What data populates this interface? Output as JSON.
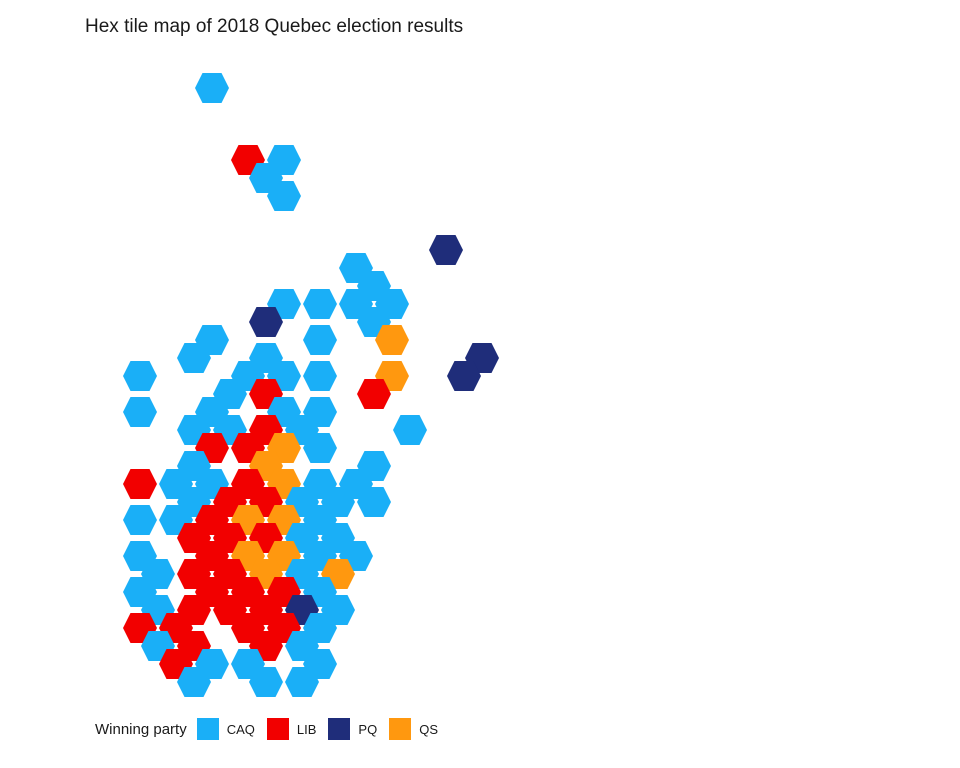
{
  "title": "Hex tile map of 2018 Quebec election results",
  "legend": {
    "title": "Winning party",
    "items": [
      {
        "key": "CAQ",
        "label": "CAQ",
        "color": "#1AAFF7"
      },
      {
        "key": "LIB",
        "label": "LIB",
        "color": "#F20000"
      },
      {
        "key": "PQ",
        "label": "PQ",
        "color": "#1F2D7A"
      },
      {
        "key": "QS",
        "label": "QS",
        "color": "#FF980F"
      }
    ]
  },
  "chart_data": {
    "type": "hex-tile-map",
    "title": "Hex tile map of 2018 Quebec election results",
    "legend_placement": "bottom-left",
    "ridings": [
      {
        "col": 8,
        "row": 0,
        "party": "CAQ"
      },
      {
        "col": 10,
        "row": 4,
        "party": "LIB"
      },
      {
        "col": 11,
        "row": 5,
        "party": "CAQ"
      },
      {
        "col": 12,
        "row": 4,
        "party": "CAQ"
      },
      {
        "col": 12,
        "row": 6,
        "party": "CAQ"
      },
      {
        "col": 21,
        "row": 9,
        "party": "PQ"
      },
      {
        "col": 16,
        "row": 10,
        "party": "CAQ"
      },
      {
        "col": 17,
        "row": 11,
        "party": "CAQ"
      },
      {
        "col": 16,
        "row": 12,
        "party": "CAQ"
      },
      {
        "col": 18,
        "row": 12,
        "party": "CAQ"
      },
      {
        "col": 17,
        "row": 13,
        "party": "CAQ"
      },
      {
        "col": 18,
        "row": 14,
        "party": "QS"
      },
      {
        "col": 18,
        "row": 16,
        "party": "QS"
      },
      {
        "col": 17,
        "row": 17,
        "party": "LIB"
      },
      {
        "col": 23,
        "row": 15,
        "party": "PQ"
      },
      {
        "col": 22,
        "row": 16,
        "party": "PQ"
      },
      {
        "col": 19,
        "row": 19,
        "party": "CAQ"
      },
      {
        "col": 12,
        "row": 12,
        "party": "CAQ"
      },
      {
        "col": 11,
        "row": 13,
        "party": "PQ"
      },
      {
        "col": 14,
        "row": 12,
        "party": "CAQ"
      },
      {
        "col": 14,
        "row": 14,
        "party": "CAQ"
      },
      {
        "col": 8,
        "row": 14,
        "party": "CAQ"
      },
      {
        "col": 7,
        "row": 15,
        "party": "CAQ"
      },
      {
        "col": 4,
        "row": 16,
        "party": "CAQ"
      },
      {
        "col": 4,
        "row": 18,
        "party": "CAQ"
      },
      {
        "col": 11,
        "row": 15,
        "party": "CAQ"
      },
      {
        "col": 10,
        "row": 16,
        "party": "CAQ"
      },
      {
        "col": 12,
        "row": 16,
        "party": "CAQ"
      },
      {
        "col": 14,
        "row": 16,
        "party": "CAQ"
      },
      {
        "col": 9,
        "row": 17,
        "party": "CAQ"
      },
      {
        "col": 11,
        "row": 17,
        "party": "LIB"
      },
      {
        "col": 8,
        "row": 18,
        "party": "CAQ"
      },
      {
        "col": 12,
        "row": 18,
        "party": "CAQ"
      },
      {
        "col": 14,
        "row": 18,
        "party": "CAQ"
      },
      {
        "col": 7,
        "row": 19,
        "party": "CAQ"
      },
      {
        "col": 9,
        "row": 19,
        "party": "CAQ"
      },
      {
        "col": 11,
        "row": 19,
        "party": "LIB"
      },
      {
        "col": 13,
        "row": 19,
        "party": "CAQ"
      },
      {
        "col": 8,
        "row": 20,
        "party": "LIB"
      },
      {
        "col": 10,
        "row": 20,
        "party": "LIB"
      },
      {
        "col": 12,
        "row": 20,
        "party": "QS"
      },
      {
        "col": 14,
        "row": 20,
        "party": "CAQ"
      },
      {
        "col": 7,
        "row": 21,
        "party": "CAQ"
      },
      {
        "col": 11,
        "row": 21,
        "party": "QS"
      },
      {
        "col": 17,
        "row": 21,
        "party": "CAQ"
      },
      {
        "col": 4,
        "row": 22,
        "party": "LIB"
      },
      {
        "col": 6,
        "row": 22,
        "party": "CAQ"
      },
      {
        "col": 8,
        "row": 22,
        "party": "CAQ"
      },
      {
        "col": 10,
        "row": 22,
        "party": "LIB"
      },
      {
        "col": 12,
        "row": 22,
        "party": "QS"
      },
      {
        "col": 14,
        "row": 22,
        "party": "CAQ"
      },
      {
        "col": 16,
        "row": 22,
        "party": "CAQ"
      },
      {
        "col": 7,
        "row": 23,
        "party": "CAQ"
      },
      {
        "col": 9,
        "row": 23,
        "party": "LIB"
      },
      {
        "col": 11,
        "row": 23,
        "party": "LIB"
      },
      {
        "col": 13,
        "row": 23,
        "party": "CAQ"
      },
      {
        "col": 15,
        "row": 23,
        "party": "CAQ"
      },
      {
        "col": 17,
        "row": 23,
        "party": "CAQ"
      },
      {
        "col": 4,
        "row": 24,
        "party": "CAQ"
      },
      {
        "col": 6,
        "row": 24,
        "party": "CAQ"
      },
      {
        "col": 8,
        "row": 24,
        "party": "LIB"
      },
      {
        "col": 10,
        "row": 24,
        "party": "QS"
      },
      {
        "col": 12,
        "row": 24,
        "party": "QS"
      },
      {
        "col": 14,
        "row": 24,
        "party": "CAQ"
      },
      {
        "col": 7,
        "row": 25,
        "party": "LIB"
      },
      {
        "col": 9,
        "row": 25,
        "party": "LIB"
      },
      {
        "col": 11,
        "row": 25,
        "party": "LIB"
      },
      {
        "col": 13,
        "row": 25,
        "party": "CAQ"
      },
      {
        "col": 15,
        "row": 25,
        "party": "CAQ"
      },
      {
        "col": 4,
        "row": 26,
        "party": "CAQ"
      },
      {
        "col": 8,
        "row": 26,
        "party": "LIB"
      },
      {
        "col": 10,
        "row": 26,
        "party": "QS"
      },
      {
        "col": 12,
        "row": 26,
        "party": "QS"
      },
      {
        "col": 14,
        "row": 26,
        "party": "CAQ"
      },
      {
        "col": 16,
        "row": 26,
        "party": "CAQ"
      },
      {
        "col": 5,
        "row": 27,
        "party": "CAQ"
      },
      {
        "col": 7,
        "row": 27,
        "party": "LIB"
      },
      {
        "col": 9,
        "row": 27,
        "party": "LIB"
      },
      {
        "col": 11,
        "row": 27,
        "party": "QS"
      },
      {
        "col": 13,
        "row": 27,
        "party": "CAQ"
      },
      {
        "col": 15,
        "row": 27,
        "party": "QS"
      },
      {
        "col": 4,
        "row": 28,
        "party": "CAQ"
      },
      {
        "col": 8,
        "row": 28,
        "party": "LIB"
      },
      {
        "col": 10,
        "row": 28,
        "party": "LIB"
      },
      {
        "col": 12,
        "row": 28,
        "party": "LIB"
      },
      {
        "col": 14,
        "row": 28,
        "party": "CAQ"
      },
      {
        "col": 5,
        "row": 29,
        "party": "CAQ"
      },
      {
        "col": 7,
        "row": 29,
        "party": "LIB"
      },
      {
        "col": 9,
        "row": 29,
        "party": "LIB"
      },
      {
        "col": 11,
        "row": 29,
        "party": "LIB"
      },
      {
        "col": 13,
        "row": 29,
        "party": "PQ"
      },
      {
        "col": 15,
        "row": 29,
        "party": "CAQ"
      },
      {
        "col": 4,
        "row": 30,
        "party": "LIB"
      },
      {
        "col": 6,
        "row": 30,
        "party": "LIB"
      },
      {
        "col": 10,
        "row": 30,
        "party": "LIB"
      },
      {
        "col": 12,
        "row": 30,
        "party": "LIB"
      },
      {
        "col": 14,
        "row": 30,
        "party": "CAQ"
      },
      {
        "col": 5,
        "row": 31,
        "party": "CAQ"
      },
      {
        "col": 7,
        "row": 31,
        "party": "LIB"
      },
      {
        "col": 11,
        "row": 31,
        "party": "LIB"
      },
      {
        "col": 13,
        "row": 31,
        "party": "CAQ"
      },
      {
        "col": 6,
        "row": 32,
        "party": "LIB"
      },
      {
        "col": 8,
        "row": 32,
        "party": "CAQ"
      },
      {
        "col": 10,
        "row": 32,
        "party": "CAQ"
      },
      {
        "col": 14,
        "row": 32,
        "party": "CAQ"
      },
      {
        "col": 7,
        "row": 33,
        "party": "CAQ"
      },
      {
        "col": 11,
        "row": 33,
        "party": "CAQ"
      },
      {
        "col": 13,
        "row": 33,
        "party": "CAQ"
      }
    ]
  }
}
